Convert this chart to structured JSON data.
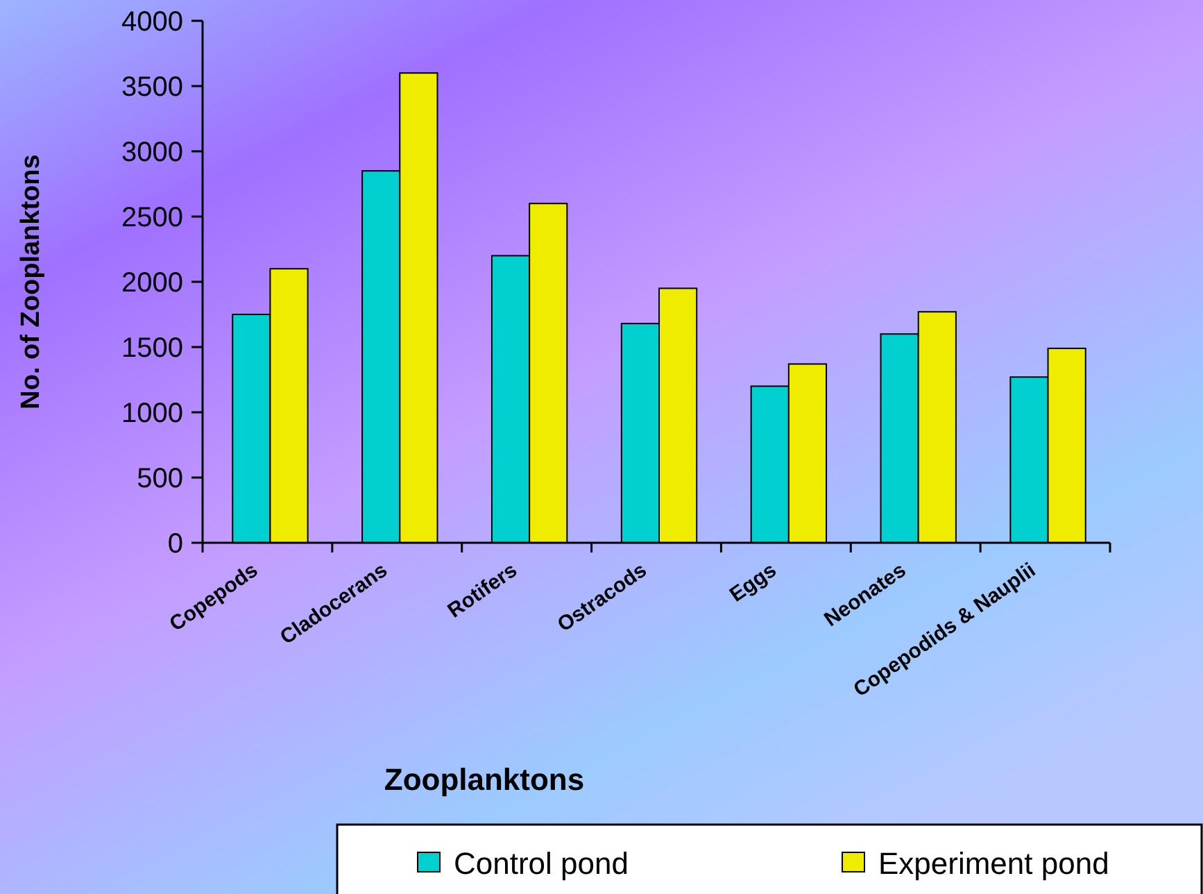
{
  "chart_data": {
    "type": "bar",
    "xlabel": "Zooplanktons",
    "ylabel": "No. of Zooplanktons",
    "categories": [
      "Copepods",
      "Cladocerans",
      "Rotifers",
      "Ostracods",
      "Eggs",
      "Neonates",
      "Copepodids & Nauplii"
    ],
    "series": [
      {
        "name": "Control pond",
        "color": "#00d0d0",
        "values": [
          1750,
          2850,
          2200,
          1680,
          1200,
          1600,
          1270
        ]
      },
      {
        "name": "Experiment pond",
        "color": "#f0ec00",
        "values": [
          2100,
          3600,
          2600,
          1950,
          1370,
          1770,
          1490
        ]
      }
    ],
    "ylim": [
      0,
      4000
    ],
    "yticks": [
      0,
      500,
      1000,
      1500,
      2000,
      2500,
      3000,
      3500,
      4000
    ],
    "legend": "bottom"
  }
}
